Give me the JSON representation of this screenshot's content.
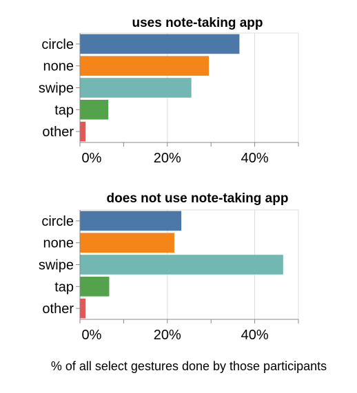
{
  "chart_data": [
    {
      "type": "bar",
      "orientation": "horizontal",
      "title": "uses note-taking app",
      "categories": [
        "circle",
        "none",
        "swipe",
        "tap",
        "other"
      ],
      "values": [
        0.365,
        0.295,
        0.255,
        0.065,
        0.013
      ],
      "colors": [
        "#4c78a8",
        "#f58518",
        "#72b7b2",
        "#54a24b",
        "#e45756"
      ],
      "xlim": [
        0,
        0.5
      ],
      "xticks": [
        0,
        0.2,
        0.4
      ],
      "xtick_labels": [
        "0%",
        "20%",
        "40%"
      ],
      "grid": true
    },
    {
      "type": "bar",
      "orientation": "horizontal",
      "title": "does not use note-taking app",
      "categories": [
        "circle",
        "none",
        "swipe",
        "tap",
        "other"
      ],
      "values": [
        0.232,
        0.216,
        0.465,
        0.067,
        0.013
      ],
      "colors": [
        "#4c78a8",
        "#f58518",
        "#72b7b2",
        "#54a24b",
        "#e45756"
      ],
      "xlim": [
        0,
        0.5
      ],
      "xticks": [
        0,
        0.2,
        0.4
      ],
      "xtick_labels": [
        "0%",
        "20%",
        "40%"
      ],
      "grid": true
    }
  ],
  "caption": "% of all select gestures done by those participants"
}
